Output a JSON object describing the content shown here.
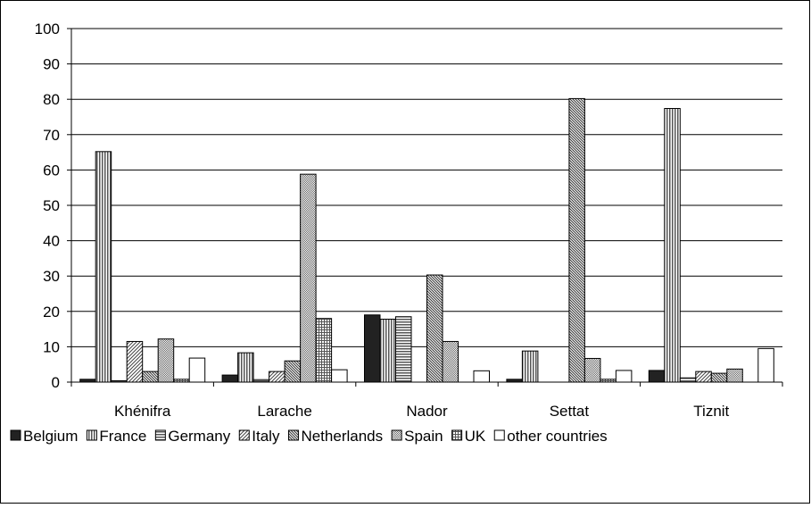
{
  "chart_data": {
    "type": "bar",
    "title": "",
    "xlabel": "",
    "ylabel": "",
    "ylim": [
      0,
      100
    ],
    "yticks": [
      0,
      10,
      20,
      30,
      40,
      50,
      60,
      70,
      80,
      90,
      100
    ],
    "grid": true,
    "legend_position": "bottom",
    "categories": [
      "Khénifra",
      "Larache",
      "Nador",
      "Settat",
      "Tiznit"
    ],
    "series": [
      {
        "name": "Belgium",
        "values": [
          0.8,
          2.0,
          19.0,
          0.8,
          3.3
        ]
      },
      {
        "name": "France",
        "values": [
          65.2,
          8.3,
          17.8,
          8.8,
          77.4
        ]
      },
      {
        "name": "Germany",
        "values": [
          0.4,
          0.7,
          18.5,
          0,
          1.2
        ]
      },
      {
        "name": "Italy",
        "values": [
          11.5,
          3.0,
          0,
          0,
          3.0
        ]
      },
      {
        "name": "Netherlands",
        "values": [
          3.0,
          6.0,
          30.3,
          80.2,
          2.5
        ]
      },
      {
        "name": "Spain",
        "values": [
          12.2,
          58.8,
          11.5,
          6.7,
          3.7
        ]
      },
      {
        "name": "UK",
        "values": [
          0.8,
          18.0,
          0,
          0.8,
          0
        ]
      },
      {
        "name": "other countries",
        "values": [
          6.8,
          3.5,
          3.2,
          3.3,
          9.5
        ]
      }
    ]
  }
}
